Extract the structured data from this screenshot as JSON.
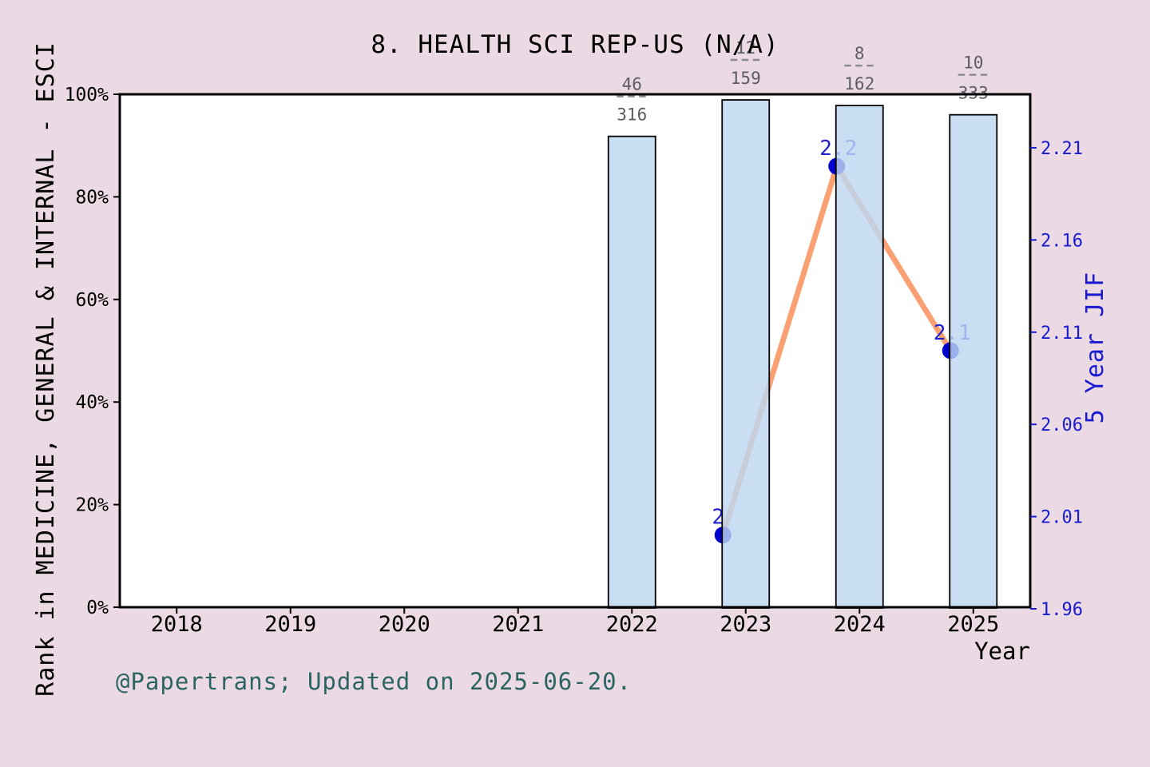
{
  "title": "8. HEALTH SCI REP-US (N/A)",
  "footer": "@Papertrans; Updated on 2025-06-20.",
  "colors": {
    "background": "#EBDAE3",
    "plot_bg": "#FFFFFF",
    "bar_fill": "rgba(189,215,240,0.82)",
    "bar_edge": "#000000",
    "line": "#FAA073",
    "marker": "#0000CC",
    "point_label": "#2020CF",
    "right_axis": "#1A1ACF",
    "axis_text": "#000000",
    "fraction_text": "#5C5C64",
    "fraction_dash": "#8A8A92",
    "footer_text": "#2B6363"
  },
  "chart_data": {
    "type": "bar+line",
    "title": "8. HEALTH SCI REP-US (N/A)",
    "x_axis": {
      "label": "Year",
      "ticks": [
        2018,
        2019,
        2020,
        2021,
        2022,
        2023,
        2024,
        2025
      ],
      "min": 2017.5,
      "max": 2025.5
    },
    "left_axis": {
      "label": "Rank in MEDICINE, GENERAL & INTERNAL - ESCI",
      "ticks": [
        "0%",
        "20%",
        "40%",
        "60%",
        "80%",
        "100%"
      ],
      "tick_values": [
        0,
        20,
        40,
        60,
        80,
        100
      ],
      "min": 0,
      "max": 100
    },
    "right_axis": {
      "label": "5 Year JIF",
      "ticks": [
        2.21,
        2.16,
        2.11,
        2.06,
        2.01,
        1.96
      ],
      "min": 1.96,
      "max": 2.239
    },
    "bars": [
      {
        "year": 2022,
        "rank_pct": 91.8,
        "fraction_num": "46",
        "fraction_den": "316"
      },
      {
        "year": 2023,
        "rank_pct": 98.9,
        "fraction_num": "12",
        "fraction_den": "159"
      },
      {
        "year": 2024,
        "rank_pct": 97.8,
        "fraction_num": "8",
        "fraction_den": "162"
      },
      {
        "year": 2025,
        "rank_pct": 96.0,
        "fraction_num": "10",
        "fraction_den": "333"
      }
    ],
    "line": {
      "name": "5 Year JIF",
      "points": [
        {
          "x": 2022.8,
          "value": 2.0,
          "label": "2"
        },
        {
          "x": 2023.8,
          "value": 2.2,
          "label": "2.2"
        },
        {
          "x": 2024.8,
          "value": 2.1,
          "label": "2.1"
        }
      ]
    }
  }
}
